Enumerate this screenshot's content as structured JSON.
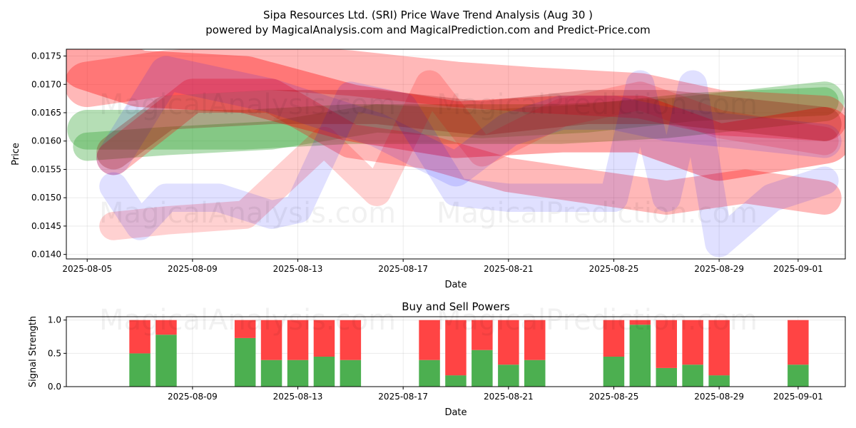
{
  "title": "Sipa Resources Ltd. (SRI) Price Wave Trend Analysis (Aug 30 )",
  "subtitle": "powered by MagicalAnalysis.com and MagicalPrediction.com and Predict-Price.com",
  "watermarks": [
    "MagicalAnalysis.com",
    "MagicalPrediction.com"
  ],
  "chart_data": [
    {
      "type": "area",
      "title": "",
      "xlabel": "Date",
      "ylabel": "Price",
      "xlim": [
        "2025-08-04T05:00",
        "2025-09-02T19:00"
      ],
      "ylim": [
        0.01392,
        0.01762
      ],
      "x_ticks": [
        "2025-08-05",
        "2025-08-09",
        "2025-08-13",
        "2025-08-17",
        "2025-08-21",
        "2025-08-25",
        "2025-08-29",
        "2025-09-01"
      ],
      "y_ticks": [
        0.014,
        0.0145,
        0.015,
        0.0155,
        0.016,
        0.0165,
        0.017,
        0.0175
      ],
      "y_tick_labels": [
        "0.0140",
        "0.0145",
        "0.0150",
        "0.0155",
        "0.0160",
        "0.0165",
        "0.0170",
        "0.0175"
      ],
      "grid": true,
      "bands": [
        {
          "color": "#2ca02c",
          "opacity": 0.35,
          "dates": [
            "2025-08-05",
            "2025-08-07",
            "2025-08-11",
            "2025-08-15",
            "2025-08-19",
            "2025-08-23",
            "2025-08-27",
            "2025-09-02"
          ],
          "values": [
            0.0162,
            0.0162,
            0.0162,
            0.0163,
            0.0163,
            0.0163,
            0.0164,
            0.0167
          ],
          "width": 0.0007
        },
        {
          "color": "#2ca02c",
          "opacity": 0.35,
          "dates": [
            "2025-08-05",
            "2025-08-08",
            "2025-08-12",
            "2025-08-16",
            "2025-08-20",
            "2025-08-24",
            "2025-08-28",
            "2025-09-02"
          ],
          "values": [
            0.0159,
            0.016,
            0.0161,
            0.0164,
            0.0163,
            0.0164,
            0.0166,
            0.0167
          ],
          "width": 0.0005
        },
        {
          "color": "#ff0000",
          "opacity": 0.35,
          "dates": [
            "2025-08-05",
            "2025-08-07",
            "2025-08-11",
            "2025-08-15",
            "2025-08-19",
            "2025-08-23",
            "2025-08-26",
            "2025-08-29",
            "2025-09-02"
          ],
          "values": [
            0.0174,
            0.0171,
            0.017,
            0.0165,
            0.0162,
            0.0163,
            0.0163,
            0.0158,
            0.0161
          ],
          "width": 0.001
        },
        {
          "color": "#ff0000",
          "opacity": 0.28,
          "dates": [
            "2025-08-05",
            "2025-08-08",
            "2025-08-12",
            "2025-08-15",
            "2025-08-19",
            "2025-08-22",
            "2025-08-26",
            "2025-08-29",
            "2025-09-02"
          ],
          "values": [
            0.017,
            0.0172,
            0.0173,
            0.0172,
            0.017,
            0.0169,
            0.0168,
            0.0165,
            0.0164
          ],
          "width": 0.0008
        },
        {
          "color": "#ff0000",
          "opacity": 0.28,
          "dates": [
            "2025-08-06",
            "2025-08-09",
            "2025-08-12",
            "2025-08-15",
            "2025-08-18",
            "2025-08-21",
            "2025-08-24",
            "2025-08-27",
            "2025-08-30",
            "2025-09-02"
          ],
          "values": [
            0.0157,
            0.0168,
            0.0168,
            0.016,
            0.0158,
            0.0154,
            0.0152,
            0.015,
            0.0152,
            0.015
          ],
          "width": 0.0006
        },
        {
          "color": "#ff0000",
          "opacity": 0.18,
          "dates": [
            "2025-08-06",
            "2025-08-08",
            "2025-08-11",
            "2025-08-14",
            "2025-08-16",
            "2025-08-18",
            "2025-08-20",
            "2025-08-23",
            "2025-08-26",
            "2025-08-29",
            "2025-09-02"
          ],
          "values": [
            0.0145,
            0.0146,
            0.0147,
            0.016,
            0.0151,
            0.017,
            0.0158,
            0.0165,
            0.0168,
            0.0163,
            0.016
          ],
          "width": 0.0005
        },
        {
          "color": "#0000ff",
          "opacity": 0.12,
          "dates": [
            "2025-08-06",
            "2025-08-07",
            "2025-08-08",
            "2025-08-10",
            "2025-08-12",
            "2025-08-13",
            "2025-08-15",
            "2025-08-17",
            "2025-08-19",
            "2025-08-21",
            "2025-08-23",
            "2025-08-25",
            "2025-08-26",
            "2025-08-27",
            "2025-08-28",
            "2025-08-29",
            "2025-08-31",
            "2025-09-02"
          ],
          "values": [
            0.0152,
            0.0145,
            0.015,
            0.015,
            0.0147,
            0.0148,
            0.0168,
            0.0166,
            0.0151,
            0.015,
            0.015,
            0.015,
            0.017,
            0.015,
            0.017,
            0.0142,
            0.015,
            0.0153
          ],
          "width": 0.0005
        },
        {
          "color": "#0000ff",
          "opacity": 0.12,
          "dates": [
            "2025-08-06",
            "2025-08-08",
            "2025-08-10",
            "2025-08-12",
            "2025-08-14",
            "2025-08-16",
            "2025-08-19",
            "2025-08-21",
            "2025-08-23",
            "2025-08-25",
            "2025-08-27",
            "2025-08-29",
            "2025-09-02"
          ],
          "values": [
            0.0157,
            0.0172,
            0.017,
            0.0168,
            0.0165,
            0.0162,
            0.0155,
            0.0162,
            0.0165,
            0.0165,
            0.0163,
            0.0162,
            0.016
          ],
          "width": 0.0006
        },
        {
          "color": "#8b0000",
          "opacity": 0.25,
          "dates": [
            "2025-08-06",
            "2025-08-08",
            "2025-08-12",
            "2025-08-16",
            "2025-08-20",
            "2025-08-24",
            "2025-08-27",
            "2025-09-02"
          ],
          "values": [
            0.0158,
            0.0165,
            0.0166,
            0.0166,
            0.0164,
            0.0166,
            0.0166,
            0.0163
          ],
          "width": 0.0006
        }
      ]
    },
    {
      "type": "bar",
      "title": "Buy and Sell Powers",
      "xlabel": "Date",
      "ylabel": "Signal Strength",
      "xlim": [
        "2025-08-04T05:00",
        "2025-09-02T19:00"
      ],
      "ylim": [
        0,
        1.05
      ],
      "x_ticks": [
        "2025-08-09",
        "2025-08-13",
        "2025-08-17",
        "2025-08-21",
        "2025-08-25",
        "2025-08-29",
        "2025-09-01"
      ],
      "y_ticks": [
        0.0,
        0.5,
        1.0
      ],
      "y_tick_labels": [
        "0.0",
        "0.5",
        "1.0"
      ],
      "grid": true,
      "colors": {
        "buy": "#4caf50",
        "sell": "#ff4444"
      },
      "dates": [
        "2025-08-07",
        "2025-08-08",
        "2025-08-11",
        "2025-08-12",
        "2025-08-13",
        "2025-08-14",
        "2025-08-15",
        "2025-08-18",
        "2025-08-19",
        "2025-08-20",
        "2025-08-21",
        "2025-08-22",
        "2025-08-25",
        "2025-08-26",
        "2025-08-27",
        "2025-08-28",
        "2025-08-29",
        "2025-09-01"
      ],
      "buy": [
        0.5,
        0.78,
        0.73,
        0.4,
        0.4,
        0.45,
        0.4,
        0.4,
        0.17,
        0.55,
        0.33,
        0.4,
        0.45,
        0.93,
        0.28,
        0.33,
        0.17,
        0.33
      ],
      "sell": [
        0.5,
        0.22,
        0.27,
        0.6,
        0.6,
        0.55,
        0.6,
        0.6,
        0.83,
        0.45,
        0.67,
        0.6,
        0.55,
        0.07,
        0.72,
        0.67,
        0.83,
        0.67
      ]
    }
  ]
}
